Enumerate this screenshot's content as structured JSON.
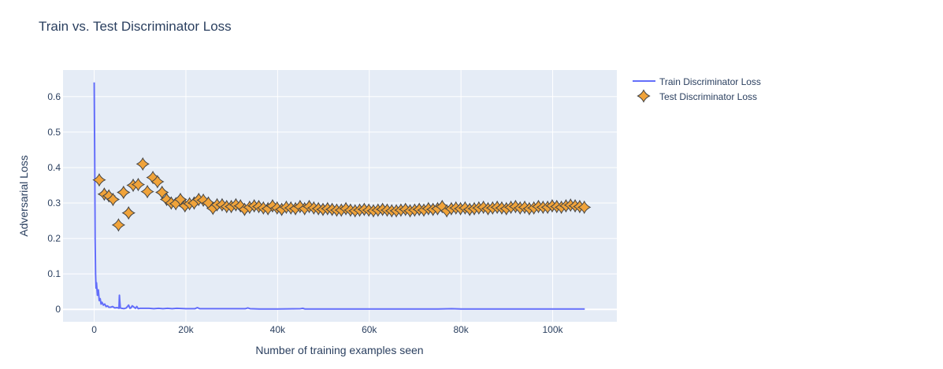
{
  "chart_data": {
    "type": "line",
    "title": "Train vs. Test Discriminator Loss",
    "xlabel": "Number of training examples seen",
    "ylabel": "Adversarial Loss",
    "xlim": [
      -6800,
      114000
    ],
    "ylim": [
      -0.035,
      0.675
    ],
    "grid": true,
    "legend_position": "top-right-outside",
    "xticks": [
      {
        "value": 0,
        "label": "0"
      },
      {
        "value": 20000,
        "label": "20k"
      },
      {
        "value": 40000,
        "label": "40k"
      },
      {
        "value": 60000,
        "label": "60k"
      },
      {
        "value": 80000,
        "label": "80k"
      },
      {
        "value": 100000,
        "label": "100k"
      }
    ],
    "yticks": [
      {
        "value": 0,
        "label": "0"
      },
      {
        "value": 0.1,
        "label": "0.1"
      },
      {
        "value": 0.2,
        "label": "0.2"
      },
      {
        "value": 0.3,
        "label": "0.3"
      },
      {
        "value": 0.4,
        "label": "0.4"
      },
      {
        "value": 0.5,
        "label": "0.5"
      },
      {
        "value": 0.6,
        "label": "0.6"
      }
    ],
    "series": [
      {
        "name": "Train Discriminator Loss",
        "mode": "lines",
        "color": "#636efa",
        "x": [
          0,
          100,
          200,
          300,
          400,
          500,
          700,
          900,
          1100,
          1300,
          1500,
          1700,
          2000,
          2300,
          2600,
          2900,
          3200,
          3600,
          4000,
          4500,
          5000,
          5400,
          5500,
          5600,
          5700,
          6000,
          6500,
          7000,
          7500,
          7800,
          8000,
          8300,
          9000,
          9300,
          9600,
          10000,
          11000,
          12000,
          13000,
          14000,
          15000,
          16000,
          17000,
          18000,
          20000,
          22000,
          22500,
          23000,
          25000,
          30000,
          33000,
          33500,
          34000,
          36000,
          40000,
          45000,
          45500,
          46000,
          50000,
          55000,
          60000,
          65000,
          70000,
          75000,
          78000,
          80000,
          81000,
          85000,
          90000,
          95000,
          100000,
          105000,
          107000
        ],
        "y": [
          0.64,
          0.45,
          0.2,
          0.1,
          0.06,
          0.075,
          0.04,
          0.055,
          0.025,
          0.03,
          0.015,
          0.02,
          0.012,
          0.015,
          0.008,
          0.01,
          0.006,
          0.006,
          0.008,
          0.004,
          0.005,
          0.003,
          0.04,
          0.02,
          0.004,
          0.003,
          0.002,
          0.004,
          0.012,
          0.003,
          0.004,
          0.01,
          0.003,
          0.008,
          0.002,
          0.003,
          0.003,
          0.003,
          0.002,
          0.003,
          0.002,
          0.003,
          0.002,
          0.003,
          0.002,
          0.002,
          0.005,
          0.002,
          0.002,
          0.002,
          0.002,
          0.004,
          0.002,
          0.001,
          0.001,
          0.002,
          0.003,
          0.001,
          0.001,
          0.001,
          0.001,
          0.001,
          0.001,
          0.001,
          0.002,
          0.001,
          0.001,
          0.001,
          0.001,
          0.001,
          0.001,
          0.001,
          0.001
        ]
      },
      {
        "name": "Test Discriminator Loss",
        "mode": "markers",
        "marker": "star-diamond",
        "color": "#f0a33a",
        "x": [
          1100,
          2200,
          3200,
          4100,
          5300,
          6400,
          7500,
          8500,
          9600,
          10600,
          11600,
          12800,
          13800,
          14800,
          15800,
          16800,
          17800,
          18800,
          19800,
          20800,
          21800,
          22800,
          23800,
          24900,
          25900,
          26800,
          27900,
          28900,
          29900,
          30900,
          31900,
          32800,
          33900,
          34900,
          35900,
          36900,
          37900,
          38900,
          39900,
          40900,
          41900,
          42900,
          43900,
          44900,
          45900,
          46900,
          47900,
          48900,
          49900,
          50900,
          51900,
          52900,
          53900,
          54900,
          55900,
          56900,
          57900,
          58900,
          59900,
          60900,
          61900,
          62900,
          63900,
          64900,
          65900,
          66900,
          67900,
          68900,
          69900,
          70900,
          71900,
          72900,
          73900,
          74900,
          75900,
          76900,
          77900,
          78900,
          79900,
          80900,
          81900,
          82900,
          83900,
          84900,
          85900,
          86900,
          87900,
          88900,
          89900,
          90900,
          91900,
          92900,
          93900,
          94900,
          95900,
          96900,
          97900,
          98900,
          99900,
          100900,
          101900,
          102900,
          103900,
          104900,
          105900,
          106900
        ],
        "y": [
          0.365,
          0.325,
          0.32,
          0.31,
          0.238,
          0.33,
          0.272,
          0.35,
          0.352,
          0.41,
          0.332,
          0.372,
          0.36,
          0.33,
          0.31,
          0.3,
          0.298,
          0.31,
          0.292,
          0.298,
          0.3,
          0.31,
          0.308,
          0.3,
          0.285,
          0.295,
          0.295,
          0.29,
          0.29,
          0.295,
          0.292,
          0.282,
          0.288,
          0.292,
          0.29,
          0.286,
          0.284,
          0.292,
          0.286,
          0.282,
          0.288,
          0.286,
          0.284,
          0.29,
          0.284,
          0.29,
          0.286,
          0.284,
          0.282,
          0.284,
          0.282,
          0.28,
          0.28,
          0.284,
          0.28,
          0.278,
          0.28,
          0.282,
          0.28,
          0.278,
          0.28,
          0.282,
          0.28,
          0.278,
          0.278,
          0.28,
          0.282,
          0.278,
          0.28,
          0.282,
          0.28,
          0.284,
          0.282,
          0.284,
          0.29,
          0.278,
          0.284,
          0.286,
          0.284,
          0.286,
          0.282,
          0.284,
          0.286,
          0.288,
          0.284,
          0.286,
          0.288,
          0.286,
          0.284,
          0.288,
          0.29,
          0.286,
          0.288,
          0.284,
          0.286,
          0.29,
          0.288,
          0.288,
          0.292,
          0.29,
          0.288,
          0.292,
          0.294,
          0.292,
          0.29,
          0.288
        ]
      }
    ]
  }
}
